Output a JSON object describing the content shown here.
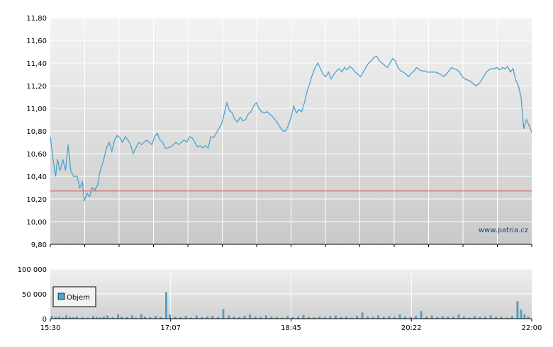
{
  "watermark": "www.patria.cz",
  "colors": {
    "line": "#4aa3cf",
    "bar": "#4aa3cf",
    "reference": "#d94c4c",
    "grid": "#ffffff",
    "plot_top": "#f3f3f3",
    "plot_bottom": "#c9c9c9"
  },
  "chart_data": [
    {
      "type": "line",
      "title": "",
      "xlabel": "",
      "ylabel": "",
      "ylim": [
        9.8,
        11.8
      ],
      "y_ticks": [
        "11,80",
        "11,60",
        "11,40",
        "11,20",
        "11,00",
        "10,80",
        "10,60",
        "10,40",
        "10,20",
        "10,00",
        "9,80"
      ],
      "reference_line": 10.27,
      "grid": true,
      "series": [
        {
          "points": [
            [
              0,
              10.75
            ],
            [
              3,
              10.55
            ],
            [
              6,
              10.4
            ],
            [
              8,
              10.55
            ],
            [
              11,
              10.45
            ],
            [
              14,
              10.55
            ],
            [
              17,
              10.45
            ],
            [
              20,
              10.68
            ],
            [
              23,
              10.45
            ],
            [
              26,
              10.4
            ],
            [
              30,
              10.4
            ],
            [
              33,
              10.3
            ],
            [
              36,
              10.35
            ],
            [
              38,
              10.18
            ],
            [
              41,
              10.25
            ],
            [
              44,
              10.22
            ],
            [
              47,
              10.3
            ],
            [
              50,
              10.28
            ],
            [
              53,
              10.32
            ],
            [
              56,
              10.45
            ],
            [
              60,
              10.55
            ],
            [
              63,
              10.65
            ],
            [
              66,
              10.7
            ],
            [
              69,
              10.62
            ],
            [
              72,
              10.72
            ],
            [
              75,
              10.76
            ],
            [
              78,
              10.74
            ],
            [
              81,
              10.7
            ],
            [
              84,
              10.75
            ],
            [
              87,
              10.72
            ],
            [
              90,
              10.68
            ],
            [
              93,
              10.6
            ],
            [
              96,
              10.65
            ],
            [
              99,
              10.7
            ],
            [
              102,
              10.68
            ],
            [
              105,
              10.7
            ],
            [
              108,
              10.72
            ],
            [
              111,
              10.7
            ],
            [
              114,
              10.68
            ],
            [
              117,
              10.75
            ],
            [
              120,
              10.78
            ],
            [
              123,
              10.72
            ],
            [
              126,
              10.7
            ],
            [
              129,
              10.65
            ],
            [
              132,
              10.65
            ],
            [
              135,
              10.66
            ],
            [
              138,
              10.68
            ],
            [
              141,
              10.7
            ],
            [
              144,
              10.68
            ],
            [
              147,
              10.7
            ],
            [
              150,
              10.72
            ],
            [
              153,
              10.7
            ],
            [
              156,
              10.75
            ],
            [
              159,
              10.74
            ],
            [
              162,
              10.7
            ],
            [
              165,
              10.66
            ],
            [
              168,
              10.67
            ],
            [
              171,
              10.65
            ],
            [
              174,
              10.67
            ],
            [
              177,
              10.65
            ],
            [
              180,
              10.75
            ],
            [
              183,
              10.74
            ],
            [
              186,
              10.78
            ],
            [
              189,
              10.82
            ],
            [
              192,
              10.86
            ],
            [
              195,
              10.95
            ],
            [
              198,
              11.05
            ],
            [
              201,
              10.98
            ],
            [
              204,
              10.96
            ],
            [
              207,
              10.9
            ],
            [
              210,
              10.88
            ],
            [
              213,
              10.92
            ],
            [
              216,
              10.89
            ],
            [
              219,
              10.9
            ],
            [
              222,
              10.95
            ],
            [
              225,
              10.97
            ],
            [
              228,
              11.02
            ],
            [
              231,
              11.05
            ],
            [
              234,
              11.0
            ],
            [
              237,
              10.97
            ],
            [
              240,
              10.96
            ],
            [
              243,
              10.97
            ],
            [
              246,
              10.95
            ],
            [
              249,
              10.93
            ],
            [
              252,
              10.9
            ],
            [
              255,
              10.87
            ],
            [
              258,
              10.83
            ],
            [
              261,
              10.8
            ],
            [
              264,
              10.8
            ],
            [
              267,
              10.85
            ],
            [
              270,
              10.92
            ],
            [
              273,
              11.02
            ],
            [
              276,
              10.96
            ],
            [
              279,
              10.99
            ],
            [
              282,
              10.97
            ],
            [
              285,
              11.05
            ],
            [
              288,
              11.15
            ],
            [
              291,
              11.22
            ],
            [
              294,
              11.3
            ],
            [
              297,
              11.36
            ],
            [
              300,
              11.4
            ],
            [
              303,
              11.35
            ],
            [
              306,
              11.3
            ],
            [
              309,
              11.28
            ],
            [
              312,
              11.32
            ],
            [
              315,
              11.26
            ],
            [
              318,
              11.3
            ],
            [
              321,
              11.33
            ],
            [
              324,
              11.35
            ],
            [
              327,
              11.32
            ],
            [
              330,
              11.36
            ],
            [
              333,
              11.34
            ],
            [
              336,
              11.37
            ],
            [
              339,
              11.35
            ],
            [
              342,
              11.32
            ],
            [
              345,
              11.3
            ],
            [
              348,
              11.28
            ],
            [
              351,
              11.32
            ],
            [
              354,
              11.36
            ],
            [
              357,
              11.4
            ],
            [
              360,
              11.42
            ],
            [
              363,
              11.45
            ],
            [
              366,
              11.46
            ],
            [
              369,
              11.42
            ],
            [
              372,
              11.4
            ],
            [
              375,
              11.38
            ],
            [
              378,
              11.36
            ],
            [
              381,
              11.4
            ],
            [
              384,
              11.44
            ],
            [
              387,
              11.42
            ],
            [
              390,
              11.36
            ],
            [
              393,
              11.33
            ],
            [
              396,
              11.32
            ],
            [
              399,
              11.3
            ],
            [
              402,
              11.28
            ],
            [
              405,
              11.31
            ],
            [
              408,
              11.33
            ],
            [
              411,
              11.36
            ],
            [
              414,
              11.34
            ],
            [
              417,
              11.33
            ],
            [
              420,
              11.33
            ],
            [
              423,
              11.32
            ],
            [
              426,
              11.32
            ],
            [
              429,
              11.32
            ],
            [
              432,
              11.32
            ],
            [
              435,
              11.31
            ],
            [
              438,
              11.3
            ],
            [
              441,
              11.28
            ],
            [
              444,
              11.3
            ],
            [
              447,
              11.33
            ],
            [
              450,
              11.36
            ],
            [
              453,
              11.35
            ],
            [
              456,
              11.34
            ],
            [
              459,
              11.32
            ],
            [
              462,
              11.28
            ],
            [
              465,
              11.26
            ],
            [
              468,
              11.25
            ],
            [
              471,
              11.24
            ],
            [
              474,
              11.22
            ],
            [
              477,
              11.2
            ],
            [
              480,
              11.21
            ],
            [
              483,
              11.24
            ],
            [
              486,
              11.28
            ],
            [
              489,
              11.32
            ],
            [
              492,
              11.34
            ],
            [
              495,
              11.35
            ],
            [
              498,
              11.35
            ],
            [
              501,
              11.36
            ],
            [
              504,
              11.34
            ],
            [
              507,
              11.36
            ],
            [
              510,
              11.35
            ],
            [
              513,
              11.37
            ],
            [
              516,
              11.32
            ],
            [
              519,
              11.35
            ],
            [
              522,
              11.25
            ],
            [
              525,
              11.2
            ],
            [
              528,
              11.1
            ],
            [
              531,
              10.82
            ],
            [
              534,
              10.9
            ],
            [
              537,
              10.85
            ],
            [
              540,
              10.79
            ]
          ]
        }
      ]
    },
    {
      "type": "bar",
      "title": "",
      "xlabel": "",
      "ylabel": "",
      "ylim": [
        0,
        100000
      ],
      "y_ticks": [
        "100 000",
        "50 000",
        "0"
      ],
      "x_ticks": [
        "15:30",
        "17:07",
        "18:45",
        "20:22",
        "22:00"
      ],
      "x_range_minutes": [
        0,
        540
      ],
      "legend": {
        "entries": [
          "Objem"
        ],
        "placement": "bottom-left"
      },
      "grid": true,
      "series": [
        {
          "name": "Objem",
          "points": [
            [
              2,
              5000
            ],
            [
              6,
              3000
            ],
            [
              10,
              4000
            ],
            [
              14,
              2000
            ],
            [
              18,
              6000
            ],
            [
              22,
              3000
            ],
            [
              26,
              2500
            ],
            [
              30,
              4000
            ],
            [
              36,
              3000
            ],
            [
              42,
              2000
            ],
            [
              48,
              5000
            ],
            [
              52,
              3000
            ],
            [
              56,
              2000
            ],
            [
              60,
              4000
            ],
            [
              64,
              6000
            ],
            [
              70,
              3000
            ],
            [
              76,
              8000
            ],
            [
              80,
              4000
            ],
            [
              86,
              3000
            ],
            [
              92,
              6000
            ],
            [
              96,
              2000
            ],
            [
              102,
              9000
            ],
            [
              106,
              4000
            ],
            [
              112,
              3000
            ],
            [
              118,
              5000
            ],
            [
              124,
              3000
            ],
            [
              130,
              53000
            ],
            [
              134,
              8000
            ],
            [
              140,
              4000
            ],
            [
              146,
              3000
            ],
            [
              152,
              5000
            ],
            [
              158,
              2000
            ],
            [
              164,
              6000
            ],
            [
              170,
              3000
            ],
            [
              176,
              4000
            ],
            [
              182,
              5000
            ],
            [
              188,
              3000
            ],
            [
              194,
              19000
            ],
            [
              200,
              6000
            ],
            [
              206,
              4000
            ],
            [
              212,
              3000
            ],
            [
              218,
              5000
            ],
            [
              224,
              8000
            ],
            [
              230,
              4000
            ],
            [
              236,
              3000
            ],
            [
              242,
              6000
            ],
            [
              248,
              4000
            ],
            [
              254,
              3000
            ],
            [
              260,
              2000
            ],
            [
              266,
              5000
            ],
            [
              272,
              3000
            ],
            [
              278,
              4000
            ],
            [
              284,
              7000
            ],
            [
              290,
              3000
            ],
            [
              296,
              2500
            ],
            [
              302,
              4000
            ],
            [
              308,
              3000
            ],
            [
              314,
              5000
            ],
            [
              320,
              6000
            ],
            [
              326,
              3000
            ],
            [
              332,
              4000
            ],
            [
              338,
              2000
            ],
            [
              344,
              5000
            ],
            [
              350,
              12000
            ],
            [
              356,
              4000
            ],
            [
              362,
              3000
            ],
            [
              368,
              6000
            ],
            [
              374,
              4000
            ],
            [
              380,
              5000
            ],
            [
              386,
              3000
            ],
            [
              392,
              8000
            ],
            [
              398,
              4000
            ],
            [
              404,
              3000
            ],
            [
              410,
              5000
            ],
            [
              416,
              15000
            ],
            [
              422,
              4000
            ],
            [
              428,
              6000
            ],
            [
              434,
              3000
            ],
            [
              440,
              5000
            ],
            [
              446,
              4000
            ],
            [
              452,
              3000
            ],
            [
              458,
              8000
            ],
            [
              464,
              4000
            ],
            [
              470,
              2000
            ],
            [
              476,
              5000
            ],
            [
              482,
              3000
            ],
            [
              488,
              4000
            ],
            [
              494,
              6000
            ],
            [
              500,
              3000
            ],
            [
              506,
              4000
            ],
            [
              512,
              2000
            ],
            [
              518,
              5000
            ],
            [
              524,
              35000
            ],
            [
              528,
              18000
            ],
            [
              532,
              8000
            ],
            [
              536,
              4000
            ]
          ]
        }
      ]
    }
  ]
}
